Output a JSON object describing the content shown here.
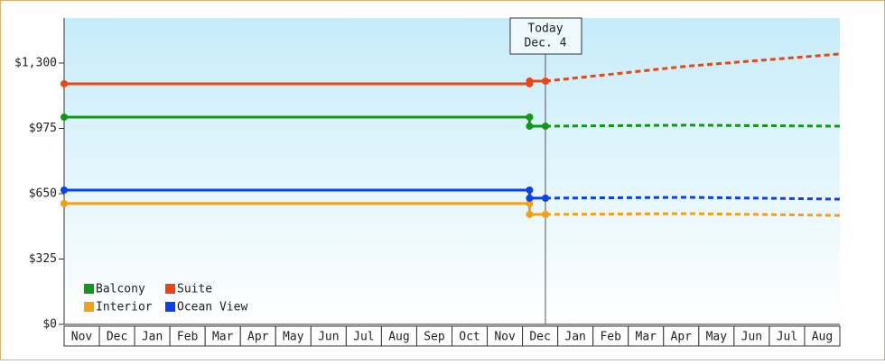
{
  "chart_data": {
    "type": "line",
    "categories": [
      "Nov",
      "Dec",
      "Jan",
      "Feb",
      "Mar",
      "Apr",
      "May",
      "Jun",
      "Jul",
      "Aug",
      "Sep",
      "Oct",
      "Nov",
      "Dec",
      "Jan",
      "Feb",
      "Mar",
      "Apr",
      "May",
      "Jun",
      "Jul",
      "Aug"
    ],
    "x": [
      0,
      13.2,
      13.2,
      13.65,
      17.7,
      22
    ],
    "xlim": [
      0,
      22
    ],
    "series": [
      {
        "name": "Balcony",
        "color": "#119911",
        "values": [
          1031,
          1031,
          986,
          986,
          991,
          986
        ]
      },
      {
        "name": "Suite",
        "color": "#ee4411",
        "values": [
          1197,
          1197,
          1210,
          1210,
          1285,
          1345
        ]
      },
      {
        "name": "Interior",
        "color": "#f4a010",
        "values": [
          601,
          601,
          547,
          547,
          551,
          542
        ]
      },
      {
        "name": "Ocean View",
        "color": "#0a40ee",
        "values": [
          668,
          668,
          628,
          628,
          632,
          623
        ]
      }
    ],
    "ylim": [
      0,
      1524
    ],
    "yticks": [
      {
        "value": 0,
        "label": "$0"
      },
      {
        "value": 325,
        "label": "$325"
      },
      {
        "value": 650,
        "label": "$650"
      },
      {
        "value": 975,
        "label": "$975"
      },
      {
        "value": 1300,
        "label": "$1,300"
      }
    ],
    "today": {
      "x": 13.65,
      "label": [
        "Today",
        "Dec. 4"
      ]
    },
    "legend": "bottom-left"
  }
}
